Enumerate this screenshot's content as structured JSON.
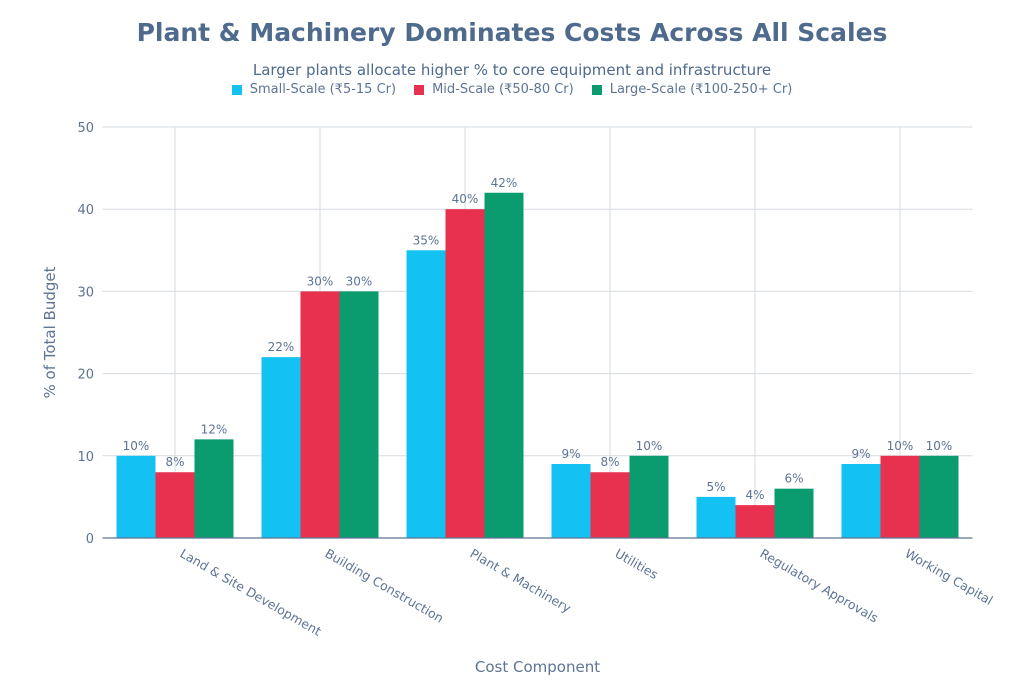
{
  "chart_data": {
    "type": "bar",
    "title": "Plant & Machinery Dominates Costs Across All Scales",
    "subtitle": "Larger plants allocate higher % to core equipment and infrastructure",
    "xlabel": "Cost Component",
    "ylabel": "% of Total Budget",
    "ylim": [
      0,
      50
    ],
    "yticks": [
      "0",
      "10",
      "20",
      "30",
      "40",
      "50"
    ],
    "grid": true,
    "legend_position": "top",
    "categories": [
      "Land & Site Development",
      "Building Construction",
      "Plant & Machinery",
      "Utilities",
      "Regulatory Approvals",
      "Working Capital"
    ],
    "series": [
      {
        "name": "Small-Scale (₹5-15 Cr)",
        "color": "#13c2f2",
        "values": [
          10,
          22,
          35,
          9,
          5,
          9
        ],
        "labels": [
          "10%",
          "22%",
          "35%",
          "9%",
          "5%",
          "9%"
        ]
      },
      {
        "name": "Mid-Scale (₹50-80 Cr)",
        "color": "#e8304f",
        "values": [
          8,
          30,
          40,
          8,
          4,
          10
        ],
        "labels": [
          "8%",
          "30%",
          "40%",
          "8%",
          "4%",
          "10%"
        ]
      },
      {
        "name": "Large-Scale (₹100-250+ Cr)",
        "color": "#0a9b6e",
        "values": [
          12,
          30,
          42,
          10,
          6,
          10
        ],
        "labels": [
          "12%",
          "30%",
          "42%",
          "10%",
          "6%",
          "10%"
        ]
      }
    ]
  }
}
